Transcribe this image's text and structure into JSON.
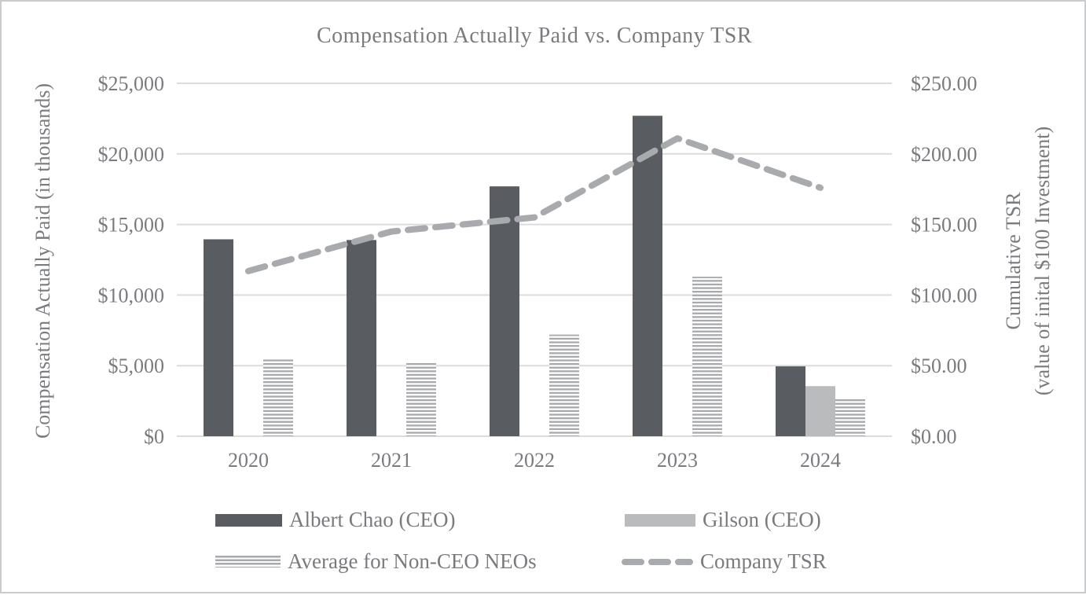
{
  "title": "Compensation Actually Paid vs. Company TSR",
  "left_axis": {
    "title": "Compensation Actually Paid (in thousands)",
    "ticks": [
      "$25,000",
      "$20,000",
      "$15,000",
      "$10,000",
      "$5,000",
      "$0"
    ]
  },
  "right_axis": {
    "title_line1": "Cumulative TSR",
    "title_line2": "(value of inital $100 Investment)",
    "ticks": [
      "$250.00",
      "$200.00",
      "$150.00",
      "$100.00",
      "$50.00",
      "$0.00"
    ]
  },
  "chart_data": {
    "type": "combo",
    "categories": [
      "2020",
      "2021",
      "2022",
      "2023",
      "2024"
    ],
    "series": [
      {
        "name": "Albert Chao (CEO)",
        "type": "bar",
        "style": "solid-dark",
        "color": "#595d61",
        "axis": "left",
        "values": [
          13950,
          13900,
          17700,
          22700,
          4950
        ]
      },
      {
        "name": "Gilson (CEO)",
        "type": "bar",
        "style": "solid-light",
        "color": "#b9bbbd",
        "axis": "left",
        "values": [
          null,
          null,
          null,
          null,
          3550
        ]
      },
      {
        "name": "Average for Non-CEO NEOs",
        "type": "bar",
        "style": "striped",
        "color": "#a7a9ac",
        "axis": "left",
        "values": [
          5450,
          5200,
          7200,
          11300,
          2650
        ]
      },
      {
        "name": "Company TSR",
        "type": "line",
        "style": "dashed",
        "color": "#a8aaad",
        "axis": "right",
        "values": [
          117,
          145,
          155,
          211,
          176
        ]
      }
    ],
    "left_ylim": [
      0,
      25000
    ],
    "right_ylim": [
      0,
      250
    ],
    "grid": true,
    "legend_position": "bottom",
    "grid_color": "#dcdcdc",
    "text_color": "#797b7e"
  },
  "legend": {
    "items": [
      {
        "label": "Albert Chao (CEO)",
        "swatch": "solid-dark"
      },
      {
        "label": "Gilson (CEO)",
        "swatch": "solid-light"
      },
      {
        "label": "Average for Non-CEO NEOs",
        "swatch": "striped"
      },
      {
        "label": "Company TSR",
        "swatch": "dashed-line"
      }
    ]
  }
}
